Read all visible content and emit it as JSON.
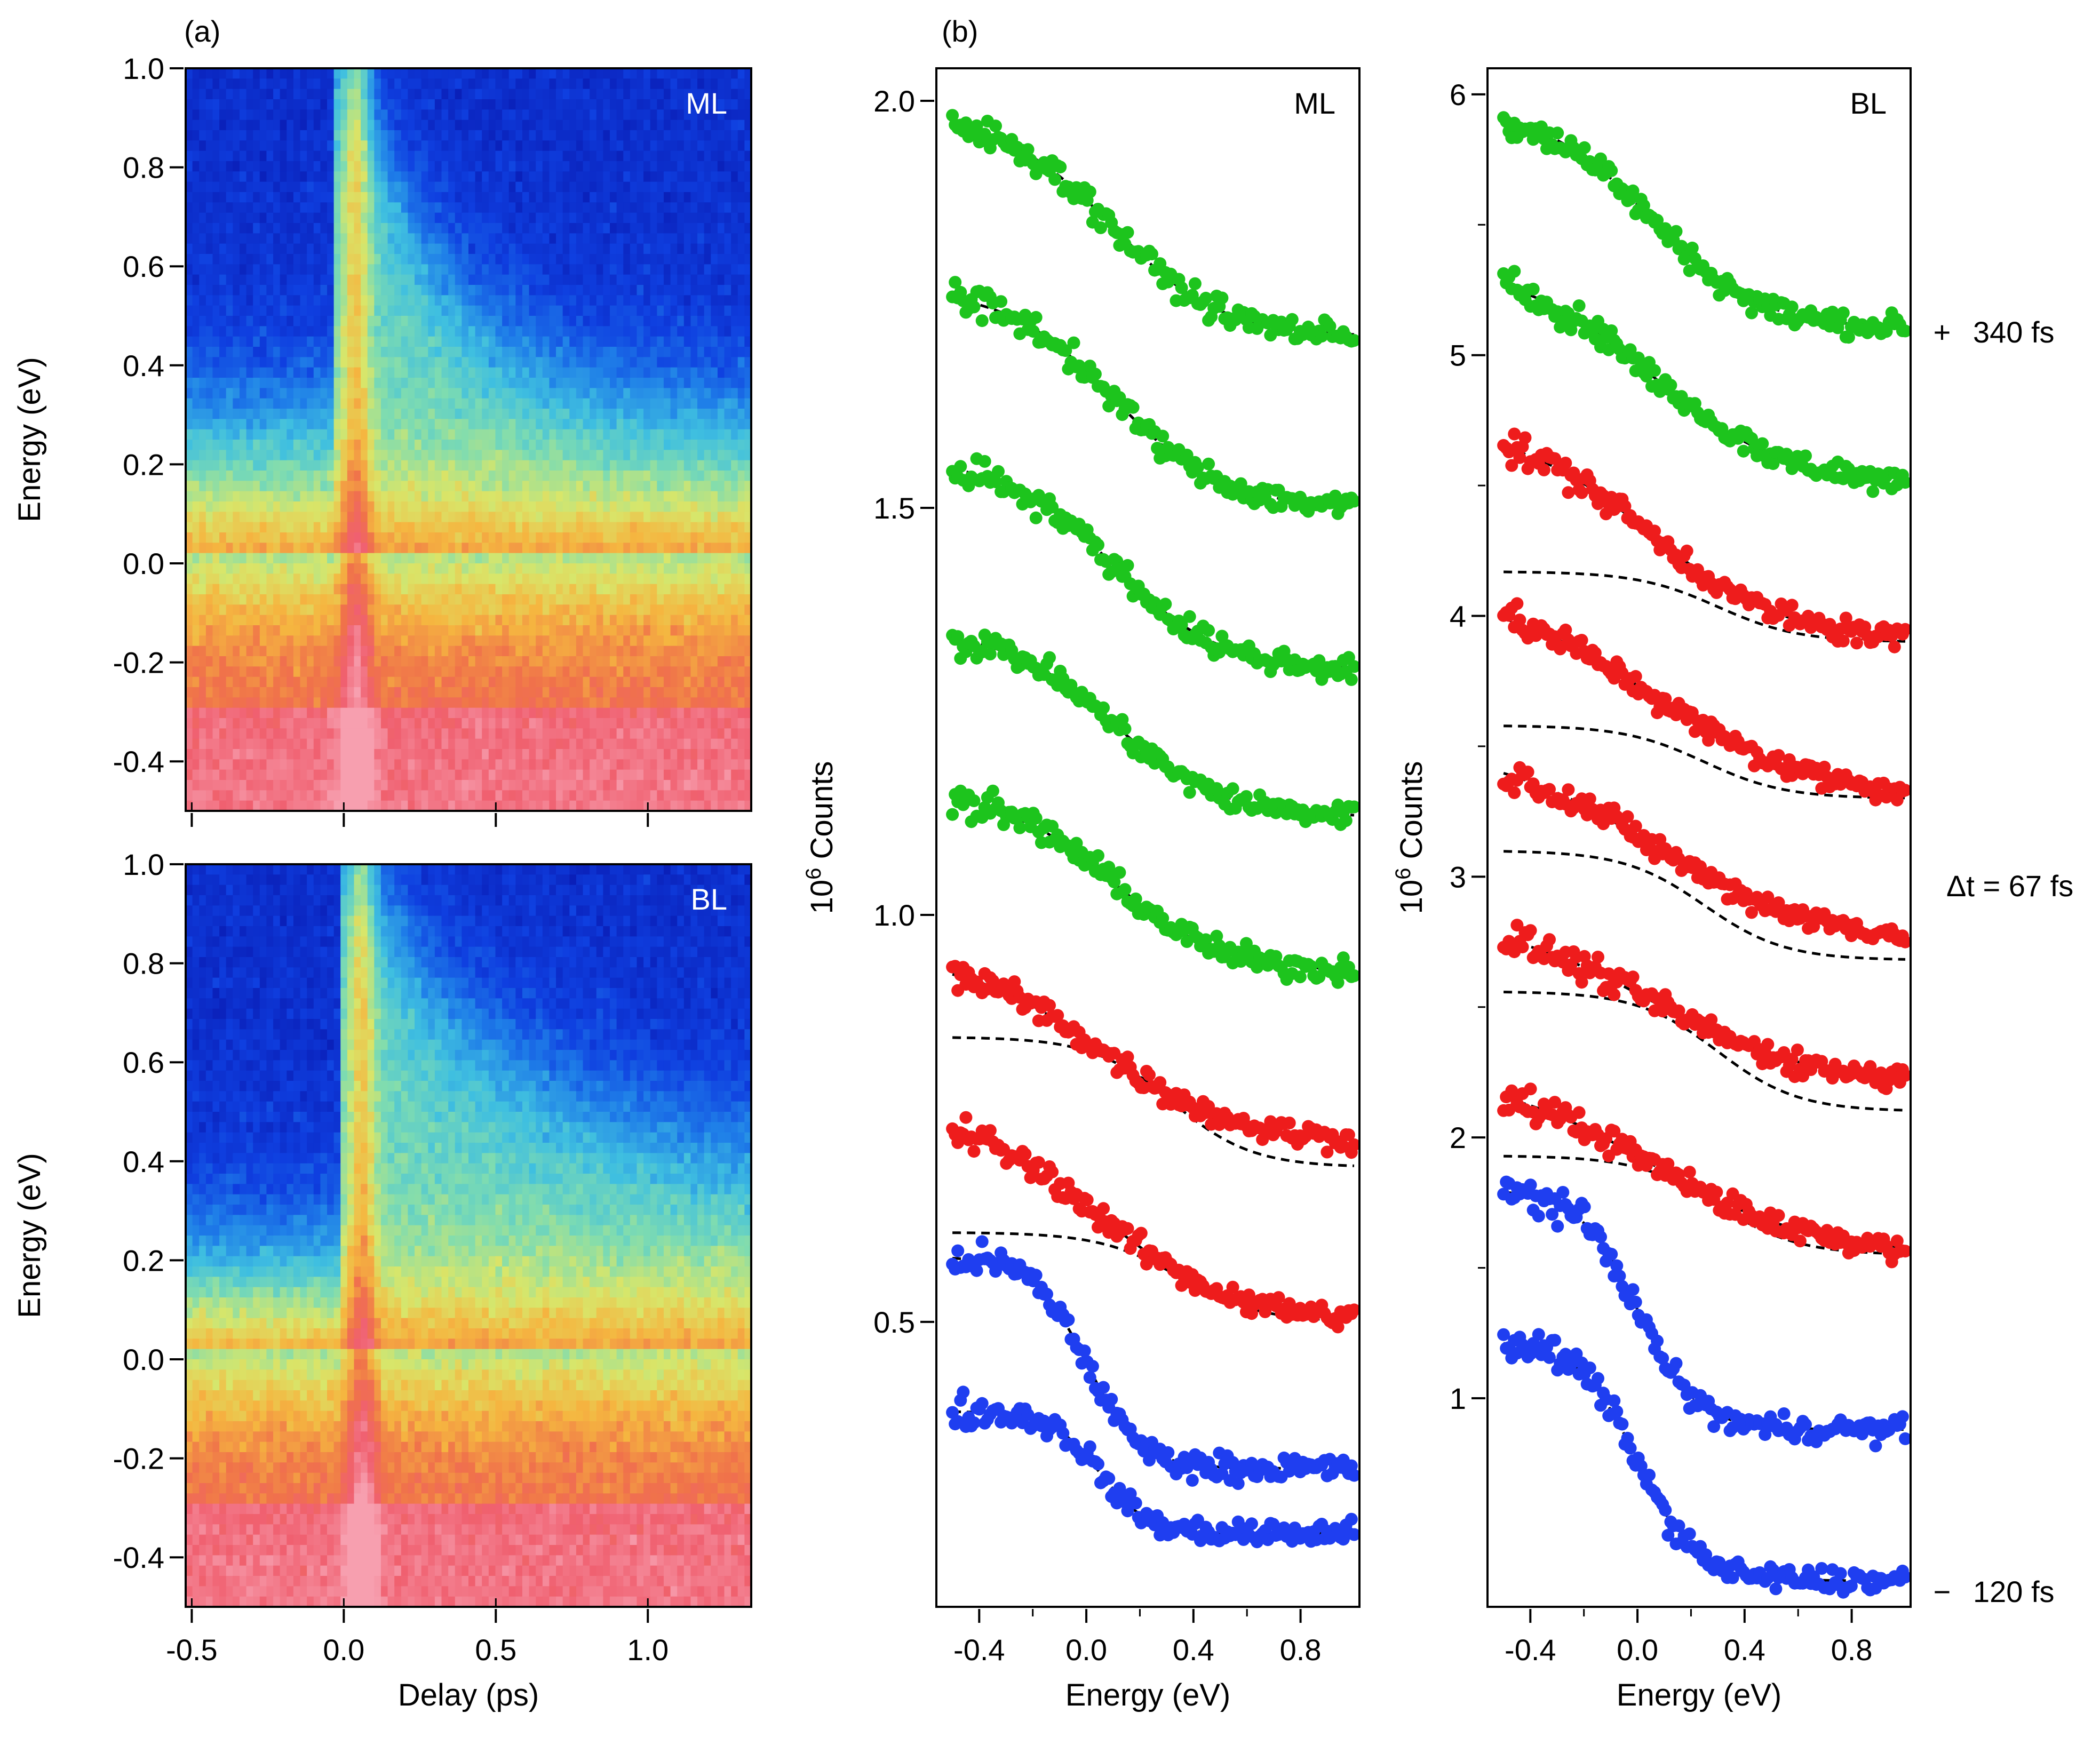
{
  "panel_labels": {
    "a": "(a)",
    "b": "(b)"
  },
  "delay_labels": {
    "top": "340 fs",
    "middle": "Δt = 67 fs",
    "bottom": "120 fs",
    "top_marker": "+",
    "bottom_marker": "−"
  },
  "colors": {
    "green": "#1dc41d",
    "red": "#ee1c1c",
    "blue": "#1f3ef0",
    "fit": "#000000",
    "colormap": [
      "#0a1fb8",
      "#0f3fe0",
      "#1f7fe8",
      "#3fbfe0",
      "#7fdcb0",
      "#d8e66a",
      "#f5b640",
      "#f0724a",
      "#f06070",
      "#f7a0b0"
    ]
  },
  "chart_data": [
    {
      "id": "map-ml",
      "type": "heatmap",
      "inset_label": "ML",
      "ylabel": "Energy (eV)",
      "xlabel": "",
      "xlim": [
        -0.52,
        1.34
      ],
      "ylim": [
        -0.5,
        1.0
      ],
      "xticks": [
        -0.5,
        0.0,
        0.5,
        1.0
      ],
      "xtick_labels": [
        "",
        "",
        "",
        ""
      ],
      "yticks": [
        -0.4,
        -0.2,
        0.0,
        0.2,
        0.4,
        0.6,
        0.8,
        1.0
      ],
      "ytick_labels": [
        "-0.4",
        "-0.2",
        "0.0",
        "0.2",
        "0.4",
        "0.6",
        "0.8",
        "1.0"
      ],
      "pre_time_edge_eV": 0.3,
      "long_time_edge_eV": 0.28,
      "peak_edge_eV": 1.0,
      "decay_ps": 0.35,
      "pump_center_ps": 0.04,
      "pump_width_ps": 0.05
    },
    {
      "id": "map-bl",
      "type": "heatmap",
      "inset_label": "BL",
      "ylabel": "Energy (eV)",
      "xlabel": "Delay (ps)",
      "xlim": [
        -0.52,
        1.34
      ],
      "ylim": [
        -0.5,
        1.0
      ],
      "xticks": [
        -0.5,
        0.0,
        0.5,
        1.0
      ],
      "xtick_labels": [
        "-0.5",
        "0.0",
        "0.5",
        "1.0"
      ],
      "yticks": [
        -0.4,
        -0.2,
        0.0,
        0.2,
        0.4,
        0.6,
        0.8,
        1.0
      ],
      "ytick_labels": [
        "-0.4",
        "-0.2",
        "0.0",
        "0.2",
        "0.4",
        "0.6",
        "0.8",
        "1.0"
      ],
      "pre_time_edge_eV": 0.2,
      "long_time_edge_eV": 0.38,
      "peak_edge_eV": 1.0,
      "decay_ps": 0.5,
      "pump_center_ps": 0.06,
      "pump_width_ps": 0.05
    },
    {
      "id": "spectra-ml",
      "type": "scatter",
      "inset_label": "ML",
      "ylabel": "10^6 Counts",
      "ylabel_base": "10",
      "ylabel_exp": "6",
      "ylabel_rest": " Counts",
      "xlabel": "Energy (eV)",
      "xlim": [
        -0.56,
        1.02
      ],
      "ylim": [
        0.15,
        2.04
      ],
      "xticks": [
        -0.4,
        0.0,
        0.4,
        0.8
      ],
      "xtick_labels": [
        "-0.4",
        "0.0",
        "0.4",
        "0.8"
      ],
      "yticks": [
        0.5,
        1.0,
        1.5,
        2.0
      ],
      "ytick_labels": [
        "0.5",
        "1.0",
        "1.5",
        "2.0"
      ],
      "minor_xticks": [
        -0.2,
        0.2,
        0.6
      ],
      "minor_yticks": [],
      "series": [
        {
          "name": "120 fs",
          "color": "blue",
          "low": 0.24,
          "high": 0.39,
          "x0": 0.05,
          "w": 0.09,
          "fit": true
        },
        {
          "name": "",
          "color": "blue",
          "low": 0.32,
          "high": 0.58,
          "x0": 0.0,
          "w": 0.1,
          "fit": true
        },
        {
          "name": "",
          "color": "red",
          "low": 0.5,
          "high": 0.76,
          "x0": 0.05,
          "w": 0.25,
          "fit": true,
          "component": {
            "low": 0.5,
            "high": 0.61,
            "x0": 0.35,
            "w": 0.15
          }
        },
        {
          "name": "Δt = 67 fs",
          "color": "red",
          "low": 0.72,
          "high": 0.95,
          "x0": 0.05,
          "w": 0.25,
          "fit": true,
          "component": {
            "low": 0.69,
            "high": 0.85,
            "x0": 0.32,
            "w": 0.15
          }
        },
        {
          "name": "",
          "color": "green",
          "low": 0.93,
          "high": 1.15,
          "x0": 0.1,
          "w": 0.2,
          "fit": true
        },
        {
          "name": "",
          "color": "green",
          "low": 1.12,
          "high": 1.35,
          "x0": 0.1,
          "w": 0.2,
          "fit": true
        },
        {
          "name": "",
          "color": "green",
          "low": 1.3,
          "high": 1.56,
          "x0": 0.1,
          "w": 0.2,
          "fit": true
        },
        {
          "name": "",
          "color": "green",
          "low": 1.5,
          "high": 1.77,
          "x0": 0.1,
          "w": 0.2,
          "fit": true
        },
        {
          "name": "340 fs",
          "color": "green",
          "low": 1.71,
          "high": 1.98,
          "x0": 0.1,
          "w": 0.2,
          "fit": true
        }
      ]
    },
    {
      "id": "spectra-bl",
      "type": "scatter",
      "inset_label": "BL",
      "ylabel": "10^6 Counts",
      "ylabel_base": "10",
      "ylabel_exp": "6",
      "ylabel_rest": " Counts",
      "xlabel": "Energy (eV)",
      "xlim": [
        -0.56,
        1.02
      ],
      "ylim": [
        0.2,
        6.1
      ],
      "xticks": [
        -0.4,
        0.0,
        0.4,
        0.8
      ],
      "xtick_labels": [
        "-0.4",
        "0.0",
        "0.4",
        "0.8"
      ],
      "yticks": [
        1,
        2,
        3,
        4,
        5,
        6
      ],
      "ytick_labels": [
        "1",
        "2",
        "3",
        "4",
        "5",
        "6"
      ],
      "minor_xticks": [
        -0.2,
        0.2,
        0.6
      ],
      "minor_yticks": [
        1.5,
        2.5,
        3.5,
        4.5,
        5.5
      ],
      "series": [
        {
          "name": "120 fs",
          "color": "blue",
          "low": 0.3,
          "high": 1.22,
          "x0": 0.0,
          "w": 0.11,
          "fit": true
        },
        {
          "name": "",
          "color": "blue",
          "low": 0.88,
          "high": 1.8,
          "x0": 0.0,
          "w": 0.11,
          "fit": true
        },
        {
          "name": "",
          "color": "red",
          "low": 1.55,
          "high": 2.25,
          "x0": 0.05,
          "w": 0.3,
          "fit": true,
          "component": {
            "low": 1.55,
            "high": 1.93,
            "x0": 0.3,
            "w": 0.15
          }
        },
        {
          "name": "",
          "color": "red",
          "low": 2.2,
          "high": 2.85,
          "x0": 0.05,
          "w": 0.3,
          "fit": true,
          "component": {
            "low": 2.1,
            "high": 2.56,
            "x0": 0.3,
            "w": 0.15
          }
        },
        {
          "name": "Δt = 67 fs",
          "color": "red",
          "low": 2.75,
          "high": 3.5,
          "x0": 0.05,
          "w": 0.3,
          "fit": true,
          "component": {
            "low": 2.68,
            "high": 3.1,
            "x0": 0.25,
            "w": 0.15
          }
        },
        {
          "name": "",
          "color": "red",
          "low": 3.3,
          "high": 4.1,
          "x0": 0.05,
          "w": 0.3,
          "fit": true,
          "component": {
            "low": 3.3,
            "high": 3.58,
            "x0": 0.25,
            "w": 0.15
          }
        },
        {
          "name": "",
          "color": "red",
          "low": 3.9,
          "high": 4.73,
          "x0": 0.05,
          "w": 0.25,
          "fit": true,
          "component": {
            "low": 3.9,
            "high": 4.17,
            "x0": 0.3,
            "w": 0.15
          }
        },
        {
          "name": "",
          "color": "green",
          "low": 4.5,
          "high": 5.35,
          "x0": 0.05,
          "w": 0.25,
          "fit": true
        },
        {
          "name": "340 fs",
          "color": "green",
          "low": 5.1,
          "high": 5.95,
          "x0": 0.05,
          "w": 0.2,
          "fit": true
        }
      ]
    }
  ]
}
